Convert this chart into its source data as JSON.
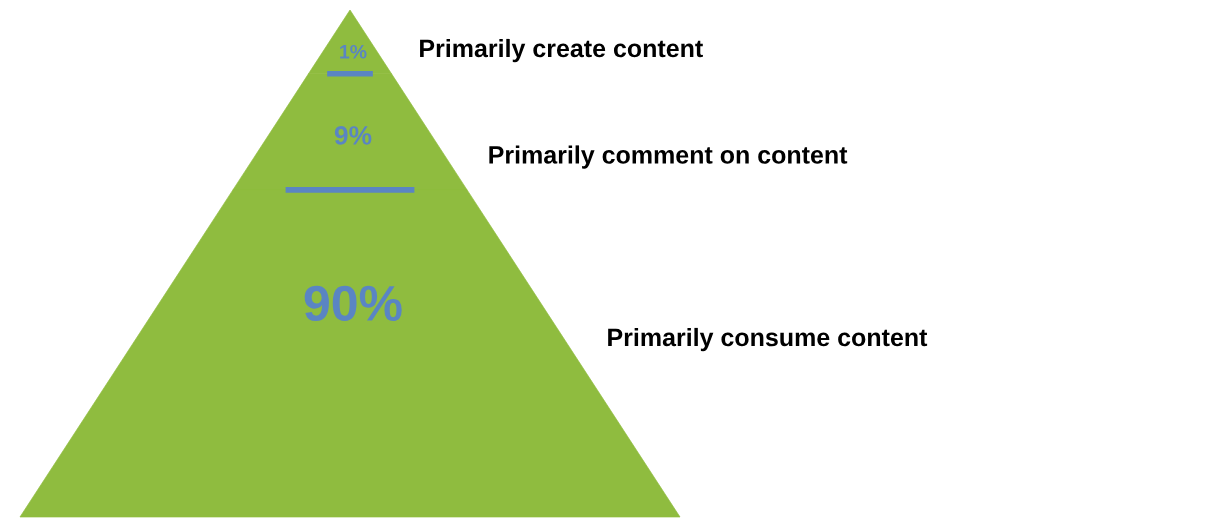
{
  "chart_data": {
    "type": "other",
    "categories": [
      "Primarily create content",
      "Primarily comment on content",
      "Primarily consume content"
    ],
    "values": [
      1,
      9,
      90
    ],
    "value_labels": [
      "1%",
      "9%",
      "90%"
    ],
    "color": "#8fbc3f"
  }
}
